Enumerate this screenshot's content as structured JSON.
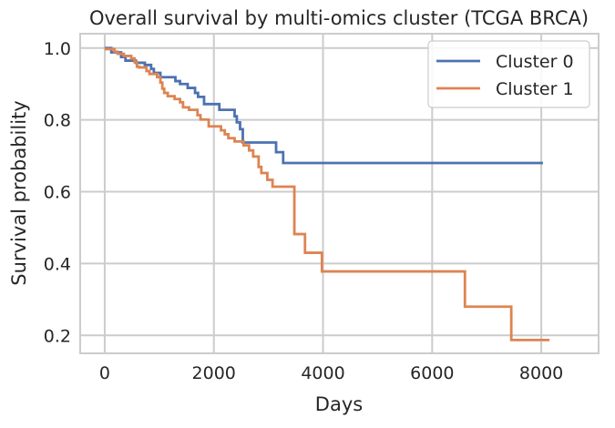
{
  "chart_data": {
    "type": "line",
    "step": true,
    "title": "Overall survival by multi-omics cluster (TCGA BRCA)",
    "xlabel": "Days",
    "ylabel": "Survival probability",
    "xlim": [
      -450,
      9050
    ],
    "ylim": [
      0.15,
      1.04
    ],
    "xticks": [
      0,
      2000,
      4000,
      6000,
      8000
    ],
    "xtick_labels": [
      "0",
      "2000",
      "4000",
      "6000",
      "8000"
    ],
    "yticks": [
      0.2,
      0.4,
      0.6,
      0.8,
      1.0
    ],
    "ytick_labels": [
      "0.2",
      "0.4",
      "0.6",
      "0.8",
      "1.0"
    ],
    "grid": true,
    "legend_position": "top-right",
    "series": [
      {
        "name": "Cluster 0",
        "color": "#4c72b0",
        "points": [
          [
            0,
            1.0
          ],
          [
            120,
            0.988
          ],
          [
            300,
            0.975
          ],
          [
            380,
            0.965
          ],
          [
            570,
            0.959
          ],
          [
            735,
            0.953
          ],
          [
            850,
            0.942
          ],
          [
            900,
            0.931
          ],
          [
            1020,
            0.919
          ],
          [
            1295,
            0.908
          ],
          [
            1380,
            0.9
          ],
          [
            1520,
            0.889
          ],
          [
            1655,
            0.875
          ],
          [
            1710,
            0.864
          ],
          [
            1820,
            0.844
          ],
          [
            2100,
            0.828
          ],
          [
            2380,
            0.81
          ],
          [
            2420,
            0.793
          ],
          [
            2480,
            0.774
          ],
          [
            2530,
            0.737
          ],
          [
            3140,
            0.71
          ],
          [
            3270,
            0.68
          ],
          [
            8030,
            0.68
          ]
        ]
      },
      {
        "name": "Cluster 1",
        "color": "#dd8452",
        "points": [
          [
            0,
            0.997
          ],
          [
            180,
            0.99
          ],
          [
            235,
            0.984
          ],
          [
            350,
            0.978
          ],
          [
            485,
            0.971
          ],
          [
            545,
            0.961
          ],
          [
            590,
            0.948
          ],
          [
            630,
            0.946
          ],
          [
            765,
            0.936
          ],
          [
            820,
            0.928
          ],
          [
            960,
            0.919
          ],
          [
            1020,
            0.904
          ],
          [
            1055,
            0.887
          ],
          [
            1090,
            0.875
          ],
          [
            1155,
            0.866
          ],
          [
            1280,
            0.858
          ],
          [
            1380,
            0.849
          ],
          [
            1435,
            0.835
          ],
          [
            1545,
            0.828
          ],
          [
            1700,
            0.813
          ],
          [
            1755,
            0.801
          ],
          [
            1905,
            0.782
          ],
          [
            2130,
            0.771
          ],
          [
            2200,
            0.76
          ],
          [
            2265,
            0.749
          ],
          [
            2380,
            0.74
          ],
          [
            2545,
            0.729
          ],
          [
            2645,
            0.715
          ],
          [
            2720,
            0.698
          ],
          [
            2820,
            0.669
          ],
          [
            2870,
            0.652
          ],
          [
            2980,
            0.633
          ],
          [
            3075,
            0.614
          ],
          [
            3475,
            0.482
          ],
          [
            3670,
            0.43
          ],
          [
            3980,
            0.378
          ],
          [
            6600,
            0.28
          ],
          [
            7450,
            0.187
          ],
          [
            8150,
            0.187
          ]
        ]
      }
    ]
  }
}
